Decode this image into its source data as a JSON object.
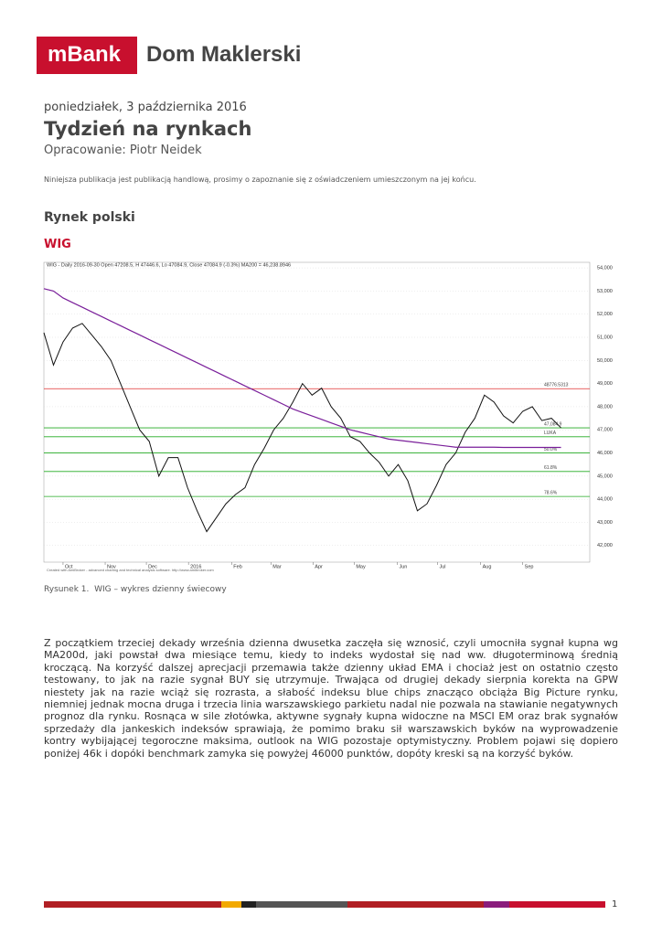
{
  "header": {
    "brand": "mBank",
    "title": "Dom Maklerski"
  },
  "date": "poniedziałek, 3 października 2016",
  "title": "Tydzień na rynkach",
  "author": "Opracowanie: Piotr Neidek",
  "disclaimer": "Niniejsza publikacja jest publikacją handlową, prosimy o zapoznanie się z oświadczeniem umieszczonym na jej końcu.",
  "section": "Rynek polski",
  "subsection": "WIG",
  "chart_data": {
    "type": "line",
    "title": "WIG - Daily 2016-09-30 Open 47208.5, H 47446.6, Lo 47084.9, Close 47084.9 (-0.3%) MA200 = 46,238.8946",
    "credit": "Created with AmiBroker - advanced charting and technical analysis software. http://www.amibroker.com",
    "x": [
      -2,
      -1,
      0,
      1,
      2,
      3,
      4,
      5,
      6,
      7,
      8,
      9,
      10,
      11,
      12,
      13,
      14,
      15,
      16,
      17,
      18,
      19,
      20,
      21,
      22,
      23,
      24,
      25,
      26,
      27,
      28,
      29,
      30,
      31,
      32,
      33,
      34,
      35,
      36,
      37,
      38,
      39,
      40,
      41,
      42,
      43,
      44,
      45,
      46,
      47,
      48,
      49,
      50,
      51,
      52
    ],
    "series": [
      {
        "name": "WIG",
        "color": "#111111",
        "values": [
          51200,
          49800,
          50800,
          51400,
          51600,
          51100,
          50600,
          50000,
          49000,
          48000,
          47000,
          46500,
          45000,
          45800,
          45800,
          44500,
          43500,
          42600,
          43200,
          43800,
          44200,
          44500,
          45500,
          46200,
          47000,
          47500,
          48200,
          49000,
          48500,
          48800,
          48000,
          47500,
          46700,
          46500,
          46000,
          45600,
          45000,
          45500,
          44800,
          43500,
          43800,
          44600,
          45500,
          46000,
          46900,
          47500,
          48500,
          48200,
          47600,
          47300,
          47800,
          48000,
          47400,
          47500,
          47085
        ]
      },
      {
        "name": "MA200",
        "color": "#7a1f9a",
        "values": [
          53100,
          53000,
          52700,
          52500,
          52300,
          52100,
          51900,
          51700,
          51500,
          51300,
          51100,
          50900,
          50700,
          50500,
          50300,
          50100,
          49900,
          49700,
          49500,
          49300,
          49100,
          48900,
          48700,
          48500,
          48300,
          48100,
          47900,
          47750,
          47600,
          47450,
          47300,
          47150,
          47000,
          46900,
          46800,
          46700,
          46600,
          46550,
          46500,
          46450,
          46400,
          46350,
          46300,
          46250,
          46250,
          46250,
          46250,
          46250,
          46240,
          46240,
          46240,
          46240,
          46240,
          46240,
          46239
        ]
      }
    ],
    "levels": [
      {
        "value": 48776.5313,
        "label": "48776.5313",
        "color": "#e03030"
      },
      {
        "value": 47084.9,
        "label": "47,084.9",
        "color": "#22aa22"
      },
      {
        "value": 46000,
        "label": "50.0%",
        "color": "#22aa22"
      },
      {
        "value": 45200,
        "label": "61.8%",
        "color": "#22aa22"
      },
      {
        "value": 44120,
        "label": "78.6%",
        "color": "#22aa22"
      },
      {
        "value": 46700,
        "label": "LUKA",
        "color": "#22aa22"
      }
    ],
    "xlim": [
      -2,
      55
    ],
    "xticks": [
      {
        "value": 0,
        "label": "Oct"
      },
      {
        "value": 4.4,
        "label": "Nov"
      },
      {
        "value": 8.7,
        "label": "Dec"
      },
      {
        "value": 13.1,
        "label": "2016"
      },
      {
        "value": 17.6,
        "label": "Feb"
      },
      {
        "value": 21.7,
        "label": "Mar"
      },
      {
        "value": 26.1,
        "label": "Apr"
      },
      {
        "value": 30.4,
        "label": "May"
      },
      {
        "value": 34.9,
        "label": "Jun"
      },
      {
        "value": 39.1,
        "label": "Jul"
      },
      {
        "value": 43.6,
        "label": "Aug"
      },
      {
        "value": 48,
        "label": "Sep"
      }
    ],
    "ylim": [
      41280,
      54240
    ],
    "yticks": [
      {
        "value": 42000,
        "label": "42,000"
      },
      {
        "value": 43000,
        "label": "43,000"
      },
      {
        "value": 44000,
        "label": "44,000"
      },
      {
        "value": 45000,
        "label": "45,000"
      },
      {
        "value": 46000,
        "label": "46,000"
      },
      {
        "value": 47000,
        "label": "47,000"
      },
      {
        "value": 48000,
        "label": "48,000"
      },
      {
        "value": 49000,
        "label": "49,000"
      },
      {
        "value": 50000,
        "label": "50,000"
      },
      {
        "value": 51000,
        "label": "51,000"
      },
      {
        "value": 52000,
        "label": "52,000"
      },
      {
        "value": 53000,
        "label": "53,000"
      },
      {
        "value": 54000,
        "label": "54,000"
      }
    ],
    "grid": true
  },
  "caption": "Rysunek 1.  WIG – wykres dzienny świecowy",
  "body": "Z początkiem trzeciej dekady września dzienna dwusetka zaczęła się wznosić, czyli umocniła sygnał kupna wg MA200d, jaki powstał dwa miesiące temu, kiedy to indeks wydostał się nad ww. długoterminową średnią kroczącą. Na korzyść dalszej aprecjacji przemawia także dzienny układ EMA i chociaż jest on ostatnio często testowany, to jak na razie sygnał BUY się utrzymuje. Trwająca od drugiej dekady sierpnia korekta na GPW niestety jak na razie wciąż się rozrasta, a słabość indeksu blue chips znacząco obciąża Big Picture rynku, niemniej jednak mocna druga i trzecia linia warszawskiego parkietu nadal nie pozwala na stawianie negatywnych prognoz dla rynku. Rosnąca w sile złotówka, aktywne sygnały kupna widoczne na MSCI EM oraz brak sygnałów sprzedaży dla jankeskich indeksów sprawiają, że pomimo braku sił warszawskich byków na wyprowadzenie kontry wybijającej tegoroczne maksima, outlook na WIG pozostaje optymistyczny. Problem pojawi się dopiero poniżej 46k  i dopóki benchmark zamyka się powyżej 46000 punktów, dopóty kreski są na korzyść byków.",
  "page_number": "1"
}
